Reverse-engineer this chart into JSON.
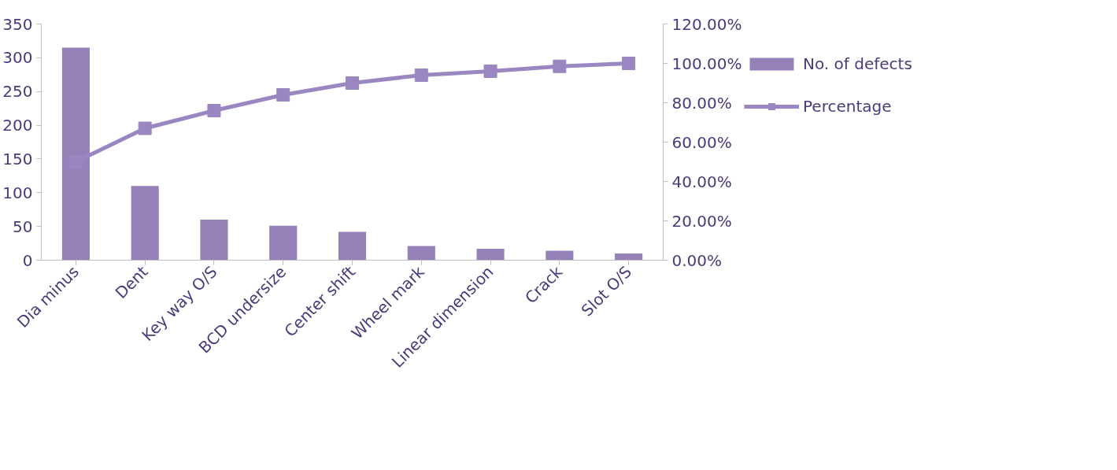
{
  "chart_data": {
    "type": "bar",
    "categories": [
      "Dia minus",
      "Dent",
      "Key way O/S",
      "BCD undersize",
      "Center shift",
      "Wheel mark",
      "Linear dimension",
      "Crack",
      "Slot O/S"
    ],
    "series": [
      {
        "name": "No. of defects",
        "color": "#9580b8",
        "values": [
          315,
          110,
          60,
          51,
          42,
          21,
          17,
          14,
          10
        ]
      },
      {
        "name": "Percentage",
        "type": "line",
        "axis": "y2",
        "color": "#9a86c0",
        "marker": "square",
        "values": [
          50,
          67,
          76,
          84,
          90,
          94,
          96,
          98.5,
          100
        ]
      }
    ],
    "ylim": [
      0,
      350
    ],
    "yticks": [
      0,
      50,
      100,
      150,
      200,
      250,
      300,
      350
    ],
    "y2lim": [
      0,
      120
    ],
    "y2ticks": [
      {
        "value": 0,
        "label": "0.00%"
      },
      {
        "value": 20,
        "label": "20.00%"
      },
      {
        "value": 40,
        "label": "40.00%"
      },
      {
        "value": 60,
        "label": "60.00%"
      },
      {
        "value": 80,
        "label": "80.00%"
      },
      {
        "value": 100,
        "label": "100.00%"
      },
      {
        "value": 120,
        "label": "120.00%"
      }
    ],
    "grid": false,
    "legend": "right"
  }
}
